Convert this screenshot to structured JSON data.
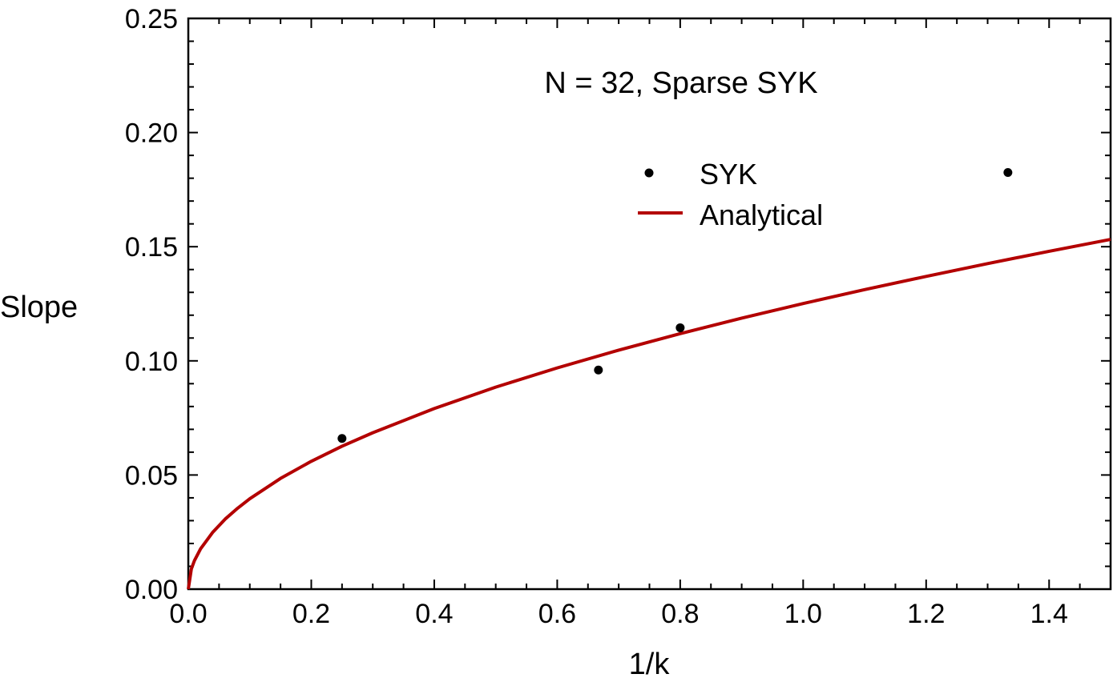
{
  "chart_data": {
    "type": "scatter",
    "annotation": "N = 32, Sparse SYK",
    "xlabel": "1/k",
    "ylabel": "Slope",
    "xlim": [
      0,
      1.5
    ],
    "ylim": [
      0,
      0.25
    ],
    "x_ticks": [
      "0.0",
      "0.2",
      "0.4",
      "0.6",
      "0.8",
      "1.0",
      "1.2",
      "1.4"
    ],
    "y_ticks": [
      "0.00",
      "0.05",
      "0.10",
      "0.15",
      "0.20",
      "0.25"
    ],
    "legend_position": "upper-middle",
    "series": [
      {
        "name": "SYK",
        "kind": "points",
        "color": "#000000",
        "x": [
          0.25,
          0.667,
          0.8,
          1.333
        ],
        "y": [
          0.066,
          0.096,
          0.1145,
          0.1825
        ]
      },
      {
        "name": "Analytical",
        "kind": "line",
        "color": "#b30000",
        "x": [
          0,
          0.005,
          0.01,
          0.02,
          0.04,
          0.06,
          0.08,
          0.1,
          0.15,
          0.2,
          0.25,
          0.3,
          0.4,
          0.5,
          0.6,
          0.7,
          0.8,
          0.9,
          1.0,
          1.1,
          1.2,
          1.3,
          1.4,
          1.5
        ],
        "y": [
          0,
          0.0089,
          0.0125,
          0.0177,
          0.025,
          0.0307,
          0.0354,
          0.0396,
          0.0485,
          0.056,
          0.0626,
          0.0685,
          0.0791,
          0.0885,
          0.0969,
          0.1047,
          0.1119,
          0.1187,
          0.1251,
          0.1312,
          0.137,
          0.1426,
          0.148,
          0.1532
        ]
      }
    ]
  }
}
